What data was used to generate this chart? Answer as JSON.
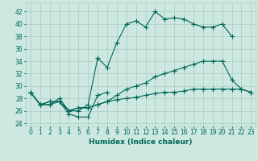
{
  "xlabel": "Humidex (Indice chaleur)",
  "xlim": [
    -0.5,
    23.5
  ],
  "ylim": [
    23.5,
    43.5
  ],
  "xticks": [
    0,
    1,
    2,
    3,
    4,
    5,
    6,
    7,
    8,
    9,
    10,
    11,
    12,
    13,
    14,
    15,
    16,
    17,
    18,
    19,
    20,
    21,
    22,
    23
  ],
  "yticks": [
    24,
    26,
    28,
    30,
    32,
    34,
    36,
    38,
    40,
    42
  ],
  "bg_color": "#cce8e0",
  "grid_color": "#aaccC4",
  "line_color": "#006858",
  "series": [
    {
      "x": [
        0,
        1,
        2,
        3,
        4,
        5,
        6,
        7,
        8,
        9,
        10,
        11,
        12,
        13,
        14,
        15,
        16,
        17,
        18,
        19,
        20,
        21
      ],
      "y": [
        29,
        27,
        27,
        28,
        26,
        26,
        27,
        34.5,
        33,
        37,
        40,
        40.5,
        39.5,
        42,
        40.8,
        41,
        40.8,
        40,
        39.5,
        39.5,
        40,
        38
      ],
      "marker": "+"
    },
    {
      "x": [
        0,
        1,
        2,
        3,
        4,
        5,
        6,
        7,
        8
      ],
      "y": [
        29,
        27,
        27,
        27.5,
        25.5,
        25,
        25,
        28.5,
        29
      ],
      "marker": "+"
    },
    {
      "x": [
        0,
        1,
        2,
        3,
        4,
        5,
        6,
        7,
        8,
        9,
        10,
        11,
        12,
        13,
        14,
        15,
        16,
        17,
        18,
        19,
        20,
        21,
        22,
        23
      ],
      "y": [
        29,
        27,
        27.5,
        27.5,
        26,
        26.5,
        26.5,
        27,
        27.5,
        28.5,
        29.5,
        30,
        30.5,
        31.5,
        32,
        32.5,
        33,
        33.5,
        34,
        34,
        34,
        31,
        29.5,
        29
      ],
      "marker": "+"
    },
    {
      "x": [
        0,
        1,
        2,
        3,
        4,
        5,
        6,
        7,
        8,
        9,
        10,
        11,
        12,
        13,
        14,
        15,
        16,
        17,
        18,
        19,
        20,
        21,
        22,
        23
      ],
      "y": [
        29,
        27,
        27.5,
        27.5,
        26,
        26.5,
        26.5,
        27,
        27.5,
        27.8,
        28,
        28.2,
        28.5,
        28.8,
        29,
        29,
        29.2,
        29.5,
        29.5,
        29.5,
        29.5,
        29.5,
        29.5,
        29
      ],
      "marker": "+"
    }
  ]
}
